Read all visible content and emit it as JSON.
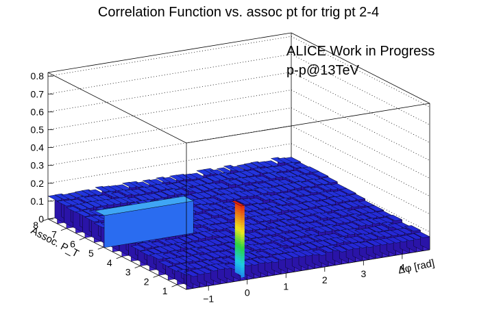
{
  "chart_data": {
    "type": "lego3d",
    "title": "Correlation Function vs. assoc pt for trig pt 2-4",
    "annotations": [
      "ALICE Work in Progress",
      "p-p@13TeV"
    ],
    "xlabel": "Δφ [rad]",
    "ylabel": "Assoc. P_T",
    "x_ticks": [
      "−1",
      "0",
      "1",
      "2",
      "3",
      "4"
    ],
    "y_ticks": [
      "1",
      "2",
      "3",
      "4",
      "5",
      "6",
      "7",
      "8"
    ],
    "z_ticks": [
      "0",
      "0.1",
      "0.2",
      "0.3",
      "0.4",
      "0.5",
      "0.6",
      "0.7",
      "0.8"
    ],
    "xlim": [
      -1.57,
      4.71
    ],
    "ylim": [
      0.5,
      8.0
    ],
    "zlim": [
      0,
      0.82
    ],
    "baseline_level": 0.13,
    "peak": {
      "dphi": 0,
      "assoc_pt": 1.0,
      "value": 0.4
    },
    "ridge": {
      "assoc_pt": 5.2,
      "value": 0.18
    },
    "colors": {
      "low": "#1a14e6",
      "mid": "#2cd34a",
      "high": "#e42010",
      "edge": "#000000"
    },
    "grid": true
  }
}
